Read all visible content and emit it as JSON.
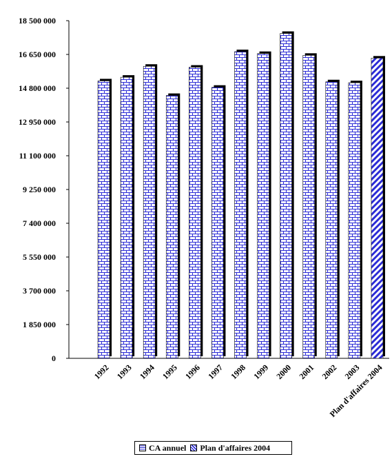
{
  "chart_data": {
    "type": "bar",
    "categories": [
      "1992",
      "1993",
      "1994",
      "1995",
      "1996",
      "1997",
      "1998",
      "1999",
      "2000",
      "2001",
      "2002",
      "2003",
      "Plan d'affaires 2004"
    ],
    "series": [
      {
        "name": "CA annuel",
        "values": [
          15200000,
          15400000,
          16000000,
          14400000,
          15950000,
          14850000,
          16800000,
          16700000,
          17800000,
          16600000,
          15150000,
          15100000,
          null
        ]
      },
      {
        "name": "Plan d'affaires 2004",
        "values": [
          null,
          null,
          null,
          null,
          null,
          null,
          null,
          null,
          null,
          null,
          null,
          null,
          16450000
        ]
      }
    ],
    "yticks": [
      "0",
      "1 850 000",
      "3 700 000",
      "5 550 000",
      "7 400 000",
      "9 250 000",
      "11 100 000",
      "12 950 000",
      "14 800 000",
      "16 650 000",
      "18 500 000"
    ],
    "ylim": [
      0,
      18500000
    ],
    "colors": {
      "bar_face": "#2b2bd6",
      "bar_shadow": "#000000",
      "mortar": "#ffffff"
    },
    "legend_position": "bottom-center"
  }
}
